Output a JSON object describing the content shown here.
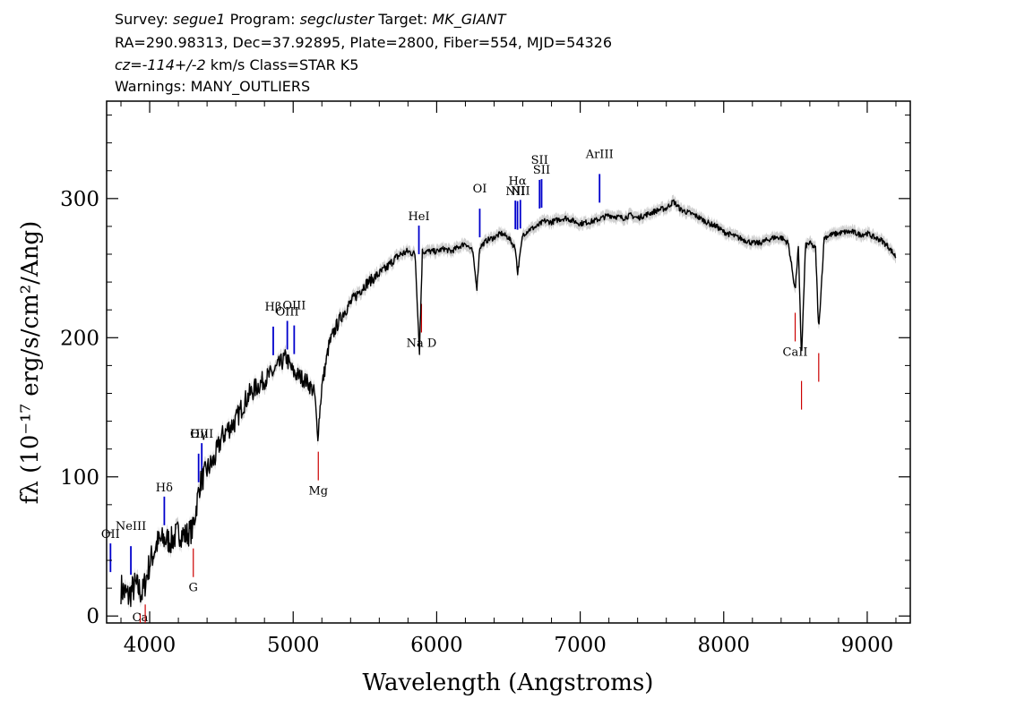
{
  "header": {
    "line1": {
      "survey_label": "Survey:",
      "survey": "segue1",
      "program_label": "Program:",
      "program": "segcluster",
      "target_label": "Target:",
      "target": "MK_GIANT"
    },
    "line2": "RA=290.98313, Dec=37.92895, Plate=2800, Fiber=554, MJD=54326",
    "line3": {
      "cz_label": "cz=",
      "cz": "-114+/-2",
      "cz_unit": "km/s",
      "class": "Class=STAR K5"
    },
    "line4": "Warnings: MANY_OUTLIERS"
  },
  "chart_data": {
    "type": "line",
    "xlabel": "Wavelength (Angstroms)",
    "ylabel": "fλ (10⁻¹⁷ erg/s/cm²/Ang)",
    "xlim": [
      3700,
      9300
    ],
    "ylim": [
      -5,
      370
    ],
    "xticks": [
      4000,
      5000,
      6000,
      7000,
      8000,
      9000
    ],
    "yticks": [
      0,
      100,
      200,
      300
    ],
    "grid": false,
    "colors": {
      "spectrum": "#000000",
      "error": "#aaaaaa",
      "emission": "#0000cc",
      "absorption": "#cc0000"
    },
    "series": [
      {
        "points": [
          [
            3800,
            20
          ],
          [
            3850,
            14
          ],
          [
            3900,
            22
          ],
          [
            3950,
            16
          ],
          [
            4000,
            38
          ],
          [
            4050,
            52
          ],
          [
            4100,
            55
          ],
          [
            4150,
            54
          ],
          [
            4200,
            60
          ],
          [
            4250,
            58
          ],
          [
            4300,
            62
          ],
          [
            4350,
            95
          ],
          [
            4400,
            105
          ],
          [
            4450,
            112
          ],
          [
            4500,
            128
          ],
          [
            4550,
            135
          ],
          [
            4600,
            140
          ],
          [
            4650,
            152
          ],
          [
            4700,
            160
          ],
          [
            4750,
            165
          ],
          [
            4800,
            170
          ],
          [
            4850,
            174
          ],
          [
            4900,
            180
          ],
          [
            4950,
            186
          ],
          [
            5000,
            175
          ],
          [
            5050,
            172
          ],
          [
            5100,
            168
          ],
          [
            5150,
            160
          ],
          [
            5170,
            128
          ],
          [
            5200,
            165
          ],
          [
            5250,
            195
          ],
          [
            5300,
            208
          ],
          [
            5350,
            218
          ],
          [
            5400,
            225
          ],
          [
            5450,
            232
          ],
          [
            5500,
            238
          ],
          [
            5550,
            242
          ],
          [
            5600,
            246
          ],
          [
            5650,
            250
          ],
          [
            5700,
            256
          ],
          [
            5750,
            260
          ],
          [
            5800,
            262
          ],
          [
            5850,
            260
          ],
          [
            5880,
            190
          ],
          [
            5900,
            262
          ],
          [
            5950,
            262
          ],
          [
            6000,
            262
          ],
          [
            6050,
            264
          ],
          [
            6100,
            262
          ],
          [
            6150,
            265
          ],
          [
            6200,
            268
          ],
          [
            6250,
            262
          ],
          [
            6280,
            236
          ],
          [
            6300,
            265
          ],
          [
            6350,
            270
          ],
          [
            6400,
            272
          ],
          [
            6450,
            275
          ],
          [
            6500,
            272
          ],
          [
            6550,
            264
          ],
          [
            6563,
            246
          ],
          [
            6600,
            274
          ],
          [
            6650,
            278
          ],
          [
            6700,
            280
          ],
          [
            6750,
            284
          ],
          [
            6800,
            283
          ],
          [
            6850,
            285
          ],
          [
            6900,
            286
          ],
          [
            6950,
            284
          ],
          [
            7000,
            282
          ],
          [
            7050,
            283
          ],
          [
            7100,
            284
          ],
          [
            7150,
            286
          ],
          [
            7200,
            288
          ],
          [
            7250,
            287
          ],
          [
            7300,
            286
          ],
          [
            7350,
            288
          ],
          [
            7400,
            286
          ],
          [
            7450,
            288
          ],
          [
            7500,
            290
          ],
          [
            7550,
            292
          ],
          [
            7600,
            293
          ],
          [
            7650,
            298
          ],
          [
            7700,
            292
          ],
          [
            7750,
            290
          ],
          [
            7800,
            288
          ],
          [
            7850,
            285
          ],
          [
            7900,
            282
          ],
          [
            7950,
            280
          ],
          [
            8000,
            276
          ],
          [
            8050,
            274
          ],
          [
            8100,
            272
          ],
          [
            8150,
            270
          ],
          [
            8200,
            268
          ],
          [
            8250,
            268
          ],
          [
            8300,
            270
          ],
          [
            8350,
            272
          ],
          [
            8400,
            272
          ],
          [
            8450,
            268
          ],
          [
            8498,
            234
          ],
          [
            8520,
            265
          ],
          [
            8542,
            185
          ],
          [
            8570,
            266
          ],
          [
            8600,
            268
          ],
          [
            8640,
            264
          ],
          [
            8662,
            205
          ],
          [
            8700,
            272
          ],
          [
            8750,
            274
          ],
          [
            8800,
            275
          ],
          [
            8850,
            276
          ],
          [
            8900,
            276
          ],
          [
            8950,
            274
          ],
          [
            9000,
            275
          ],
          [
            9050,
            272
          ],
          [
            9100,
            270
          ],
          [
            9150,
            265
          ],
          [
            9200,
            258
          ]
        ]
      }
    ],
    "emission_lines": [
      {
        "label": "OII",
        "wave": 3727
      },
      {
        "label": "NeIII",
        "wave": 3869
      },
      {
        "label": "Hδ",
        "wave": 4102
      },
      {
        "label": "Hγ",
        "wave": 4341
      },
      {
        "label": "OIII",
        "wave": 4363
      },
      {
        "label": "Hβ",
        "wave": 4861
      },
      {
        "label": "OIII",
        "wave": 4959
      },
      {
        "label": "OIII",
        "wave": 5007
      },
      {
        "label": "HeI",
        "wave": 5876
      },
      {
        "label": "OI",
        "wave": 6300
      },
      {
        "label": "NII",
        "wave": 6548
      },
      {
        "label": "Hα",
        "wave": 6563
      },
      {
        "label": "NII",
        "wave": 6583
      },
      {
        "label": "SII",
        "wave": 6717
      },
      {
        "label": "SII",
        "wave": 6731
      },
      {
        "label": "ArIII",
        "wave": 7135
      }
    ],
    "absorption_lines": [
      {
        "label": "Ca",
        "wave": 3934
      },
      {
        "label": "",
        "wave": 3969
      },
      {
        "label": "G",
        "wave": 4304
      },
      {
        "label": "Mg",
        "wave": 5175
      },
      {
        "label": "Na D",
        "wave": 5894
      },
      {
        "label": "CaII",
        "wave": 8498
      },
      {
        "label": "",
        "wave": 8542
      },
      {
        "label": "",
        "wave": 8662
      }
    ]
  }
}
